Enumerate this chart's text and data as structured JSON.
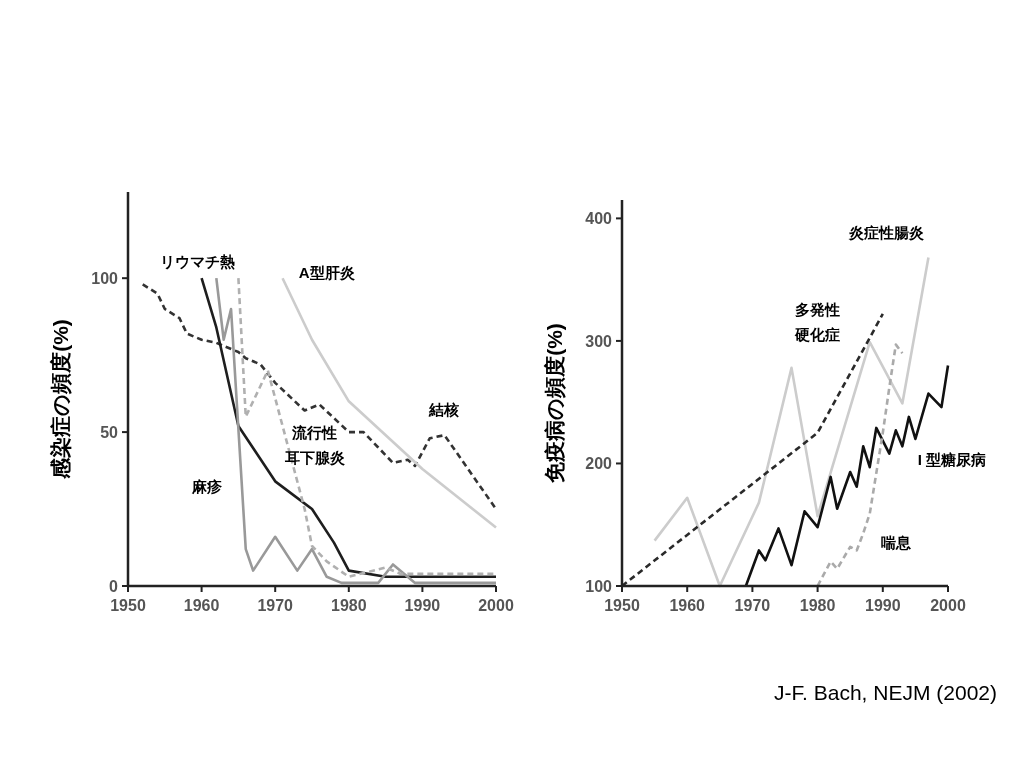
{
  "chart_data": [
    {
      "type": "line",
      "ylabel": "感染症の頻度(%)",
      "xlim": [
        1950,
        2000
      ],
      "ylim": [
        0,
        128
      ],
      "xticks": [
        1950,
        1960,
        1970,
        1980,
        1990,
        2000
      ],
      "yticks": [
        0,
        50,
        100
      ],
      "grid": false,
      "marker": "none",
      "series": [
        {
          "name": "結核",
          "color": "#333333",
          "line_style": "dashed",
          "x": [
            1952,
            1954,
            1955,
            1957,
            1958,
            1960,
            1962,
            1965,
            1966,
            1968,
            1970,
            1974,
            1976,
            1980,
            1982,
            1984,
            1986,
            1988,
            1989,
            1991,
            1993,
            2000
          ],
          "values": [
            98,
            95,
            90,
            87,
            82,
            80,
            79,
            76,
            74,
            72,
            66,
            57,
            59,
            50,
            50,
            45,
            40,
            41,
            39,
            48,
            49,
            25
          ]
        },
        {
          "name": "リウマチ熱",
          "color": "#1e1e1e",
          "line_style": "solid",
          "x": [
            1960,
            1962,
            1965,
            1970,
            1975,
            1978,
            1980,
            1985,
            2000
          ],
          "values": [
            100,
            84,
            52,
            34,
            25,
            14,
            5,
            3,
            3
          ]
        },
        {
          "name": "麻疹",
          "color": "#999999",
          "line_style": "solid",
          "x": [
            1962,
            1963,
            1964,
            1966,
            1967,
            1970,
            1973,
            1975,
            1977,
            1979,
            1984,
            1986,
            1989,
            2000
          ],
          "values": [
            100,
            80,
            90,
            12,
            5,
            16,
            5,
            12,
            3,
            1,
            1,
            7,
            1,
            1
          ]
        },
        {
          "name": "流行性耳下腺炎",
          "color": "#b0b0b0",
          "line_style": "dashed",
          "x": [
            1965,
            1966,
            1969,
            1974,
            1975,
            1977,
            1980,
            1985,
            1987,
            2000
          ],
          "values": [
            100,
            55,
            70,
            25,
            13,
            8,
            3,
            6,
            4,
            4
          ]
        },
        {
          "name": "A型肝炎",
          "color": "#cccccc",
          "line_style": "solid",
          "x": [
            1971,
            1975,
            1980,
            1990,
            2000
          ],
          "values": [
            100,
            80,
            60,
            38,
            19
          ]
        }
      ]
    },
    {
      "type": "line",
      "ylabel": "免疫病の頻度(%)",
      "xlim": [
        1950,
        2000
      ],
      "ylim": [
        100,
        415
      ],
      "xticks": [
        1950,
        1960,
        1970,
        1980,
        1990,
        2000
      ],
      "yticks": [
        100,
        200,
        300,
        400
      ],
      "grid": false,
      "marker": "none",
      "annotations": [
        "J-F. Bach, NEJM (2002)"
      ],
      "series": [
        {
          "name": "炎症性腸炎",
          "color": "#cccccc",
          "line_style": "solid",
          "x": [
            1955,
            1960,
            1965,
            1971,
            1976,
            1980,
            1988,
            1993,
            1997
          ],
          "values": [
            137,
            172,
            100,
            168,
            278,
            157,
            299,
            249,
            368
          ]
        },
        {
          "name": "多発性硬化症",
          "color": "#2a2a2a",
          "line_style": "dashed",
          "x": [
            1950,
            1980,
            1990
          ],
          "values": [
            100,
            225,
            322
          ]
        },
        {
          "name": "I 型糖尿病",
          "color": "#111111",
          "line_style": "solid",
          "x": [
            1969,
            1971,
            1972,
            1974,
            1976,
            1978,
            1980,
            1982,
            1983,
            1985,
            1986,
            1987,
            1988,
            1989,
            1991,
            1992,
            1993,
            1994,
            1995,
            1997,
            1999,
            2000
          ],
          "values": [
            100,
            129,
            121,
            147,
            117,
            161,
            148,
            189,
            163,
            193,
            181,
            214,
            197,
            229,
            208,
            227,
            214,
            238,
            220,
            257,
            246,
            280
          ]
        },
        {
          "name": "喘息",
          "color": "#aaaaaa",
          "line_style": "dashed",
          "x": [
            1980,
            1982,
            1983,
            1985,
            1986,
            1987,
            1988,
            1990,
            1991,
            1992,
            1993
          ],
          "values": [
            100,
            120,
            114,
            132,
            129,
            143,
            159,
            225,
            262,
            297,
            290
          ]
        }
      ]
    }
  ]
}
